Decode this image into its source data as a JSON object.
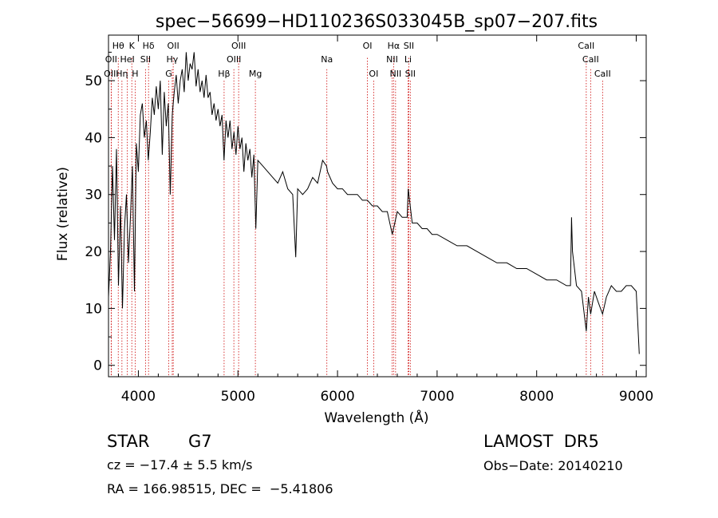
{
  "chart_data": {
    "type": "line",
    "title": "spec−56699−HD110236S033045B_sp07−207.fits",
    "xlabel": "Wavelength (Å)",
    "ylabel": "Flux (relative)",
    "xlim": [
      3700,
      9100
    ],
    "ylim": [
      -2,
      58
    ],
    "xticks": [
      4000,
      5000,
      6000,
      7000,
      8000,
      9000
    ],
    "yticks": [
      0,
      10,
      20,
      30,
      40,
      50
    ],
    "grid": false,
    "line_color": "#000000",
    "marker_color": "#cc0000",
    "series": [
      {
        "x": [
          3700,
          3720,
          3740,
          3760,
          3780,
          3800,
          3820,
          3840,
          3860,
          3880,
          3900,
          3920,
          3940,
          3960,
          3980,
          4000,
          4020,
          4040,
          4060,
          4080,
          4100,
          4120,
          4140,
          4160,
          4180,
          4200,
          4220,
          4240,
          4260,
          4280,
          4300,
          4320,
          4340,
          4360,
          4380,
          4400,
          4420,
          4440,
          4460,
          4480,
          4500,
          4520,
          4540,
          4560,
          4580,
          4600,
          4620,
          4640,
          4660,
          4680,
          4700,
          4720,
          4740,
          4760,
          4780,
          4800,
          4820,
          4840,
          4860,
          4880,
          4900,
          4920,
          4940,
          4960,
          4980,
          5000,
          5020,
          5040,
          5060,
          5080,
          5100,
          5120,
          5140,
          5160,
          5180,
          5200,
          5250,
          5300,
          5350,
          5400,
          5450,
          5500,
          5550,
          5580,
          5600,
          5650,
          5700,
          5750,
          5800,
          5850,
          5890,
          5900,
          5950,
          6000,
          6050,
          6100,
          6150,
          6200,
          6250,
          6300,
          6350,
          6400,
          6450,
          6500,
          6550,
          6563,
          6600,
          6650,
          6700,
          6710,
          6750,
          6800,
          6850,
          6900,
          6950,
          7000,
          7100,
          7200,
          7300,
          7400,
          7500,
          7600,
          7700,
          7800,
          7900,
          8000,
          8100,
          8200,
          8300,
          8340,
          8350,
          8360,
          8400,
          8450,
          8498,
          8520,
          8542,
          8580,
          8620,
          8662,
          8700,
          8750,
          8800,
          8850,
          8900,
          8950,
          9000,
          9030
        ],
        "y": [
          12,
          20,
          35,
          22,
          38,
          14,
          28,
          10,
          24,
          30,
          18,
          26,
          35,
          13,
          39,
          34,
          44,
          46,
          40,
          43,
          36,
          41,
          47,
          44,
          49,
          45,
          50,
          37,
          48,
          42,
          46,
          30,
          44,
          48,
          51,
          46,
          50,
          52,
          48,
          55,
          50,
          53,
          52,
          55,
          49,
          52,
          48,
          50,
          47,
          51,
          47,
          48,
          44,
          46,
          43,
          45,
          42,
          44,
          36,
          43,
          40,
          43,
          38,
          41,
          37,
          42,
          38,
          40,
          34,
          39,
          36,
          38,
          33,
          37,
          24,
          36,
          35,
          34,
          33,
          32,
          34,
          31,
          30,
          19,
          31,
          30,
          31,
          33,
          32,
          36,
          35,
          34,
          32,
          31,
          31,
          30,
          30,
          30,
          29,
          29,
          28,
          28,
          27,
          27,
          23,
          24,
          27,
          26,
          26,
          31,
          25,
          25,
          24,
          24,
          23,
          23,
          22,
          21,
          21,
          20,
          19,
          18,
          18,
          17,
          17,
          16,
          15,
          15,
          14,
          14,
          26,
          20,
          14,
          13,
          6,
          12,
          9,
          13,
          11,
          9,
          12,
          14,
          13,
          13,
          14,
          14,
          13,
          2
        ]
      }
    ],
    "lines": [
      {
        "name": "Hθ",
        "x": 3798,
        "row": 1,
        "ytop": 54
      },
      {
        "name": "K",
        "x": 3934,
        "row": 1,
        "ytop": 54
      },
      {
        "name": "Hδ",
        "x": 4102,
        "row": 1,
        "ytop": 54
      },
      {
        "name": "OII",
        "x": 4350,
        "row": 1,
        "ytop": 54
      },
      {
        "name": "OIII",
        "x": 5007,
        "row": 1,
        "ytop": 54
      },
      {
        "name": "OI",
        "x": 6300,
        "row": 1,
        "ytop": 54
      },
      {
        "name": "Hα",
        "x": 6563,
        "row": 1,
        "ytop": 54
      },
      {
        "name": "SII",
        "x": 6716,
        "row": 1,
        "ytop": 54
      },
      {
        "name": "CaII",
        "x": 8498,
        "row": 1,
        "ytop": 54
      },
      {
        "name": "OII",
        "x": 3727,
        "row": 2,
        "ytop": 52
      },
      {
        "name": "HeI",
        "x": 3889,
        "row": 2,
        "ytop": 52
      },
      {
        "name": "SII",
        "x": 4072,
        "row": 2,
        "ytop": 52
      },
      {
        "name": "Hγ",
        "x": 4340,
        "row": 2,
        "ytop": 52
      },
      {
        "name": "OIII",
        "x": 4959,
        "row": 2,
        "ytop": 52
      },
      {
        "name": "Na",
        "x": 5893,
        "row": 2,
        "ytop": 52
      },
      {
        "name": "NII",
        "x": 6548,
        "row": 2,
        "ytop": 52
      },
      {
        "name": "Li",
        "x": 6708,
        "row": 2,
        "ytop": 52
      },
      {
        "name": "CaII",
        "x": 8542,
        "row": 2,
        "ytop": 52
      },
      {
        "name": "OIII",
        "x": 3727,
        "row": 3,
        "ytop": 50
      },
      {
        "name": "Hη",
        "x": 3835,
        "row": 3,
        "ytop": 50
      },
      {
        "name": "H",
        "x": 3968,
        "row": 3,
        "ytop": 50
      },
      {
        "name": "G",
        "x": 4305,
        "row": 3,
        "ytop": 50
      },
      {
        "name": "Hβ",
        "x": 4861,
        "row": 3,
        "ytop": 50
      },
      {
        "name": "Mg",
        "x": 5175,
        "row": 3,
        "ytop": 50
      },
      {
        "name": "OI",
        "x": 6363,
        "row": 3,
        "ytop": 50
      },
      {
        "name": "NII",
        "x": 6583,
        "row": 3,
        "ytop": 50
      },
      {
        "name": "SII",
        "x": 6731,
        "row": 3,
        "ytop": 50
      },
      {
        "name": "CaII",
        "x": 8662,
        "row": 3,
        "ytop": 50
      }
    ]
  },
  "info": {
    "object_type": "STAR",
    "subclass": "G7",
    "survey": "LAMOST  DR5",
    "cz_label": "cz = −17.4 ± 5.5 km/s",
    "obs_date": "Obs−Date: 20140210",
    "coords": "RA = 166.98515, DEC =  −5.41806"
  }
}
